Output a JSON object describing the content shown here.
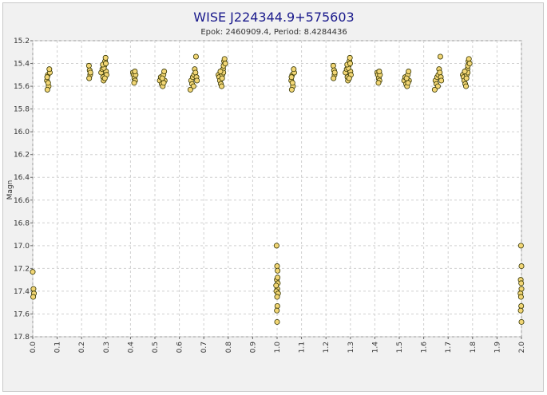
{
  "chart_data": {
    "type": "scatter",
    "title": "WISE J224344.9+575603",
    "subtitle": "Epok: 2460909.4, Period: 8.4284436",
    "xlabel": "",
    "ylabel": "Magn",
    "xlim": [
      0.0,
      2.0
    ],
    "ylim": [
      15.2,
      17.8
    ],
    "y_inverted": true,
    "grid": true,
    "x_ticks": [
      "0.0",
      "0.1",
      "0.2",
      "0.3",
      "0.4",
      "0.5",
      "0.6",
      "0.7",
      "0.8",
      "0.9",
      "1.0",
      "1.1",
      "1.2",
      "1.3",
      "1.4",
      "1.5",
      "1.6",
      "1.7",
      "1.8",
      "1.9",
      "2.0"
    ],
    "y_ticks": [
      "15.2",
      "15.4",
      "15.6",
      "15.8",
      "16.0",
      "16.2",
      "16.4",
      "16.6",
      "16.8",
      "17.0",
      "17.2",
      "17.4",
      "17.6",
      "17.8"
    ],
    "marker_fill": "#f2d675",
    "marker_edge": "#333300",
    "series": [
      {
        "points": [
          [
            0.0,
            17.23
          ],
          [
            0.003,
            17.38
          ],
          [
            0.005,
            17.42
          ],
          [
            0.002,
            17.45
          ],
          [
            0.058,
            15.55
          ],
          [
            0.062,
            15.5
          ],
          [
            0.065,
            15.6
          ],
          [
            0.06,
            15.63
          ],
          [
            0.07,
            15.48
          ],
          [
            0.068,
            15.45
          ],
          [
            0.063,
            15.57
          ],
          [
            0.059,
            15.52
          ],
          [
            0.23,
            15.42
          ],
          [
            0.233,
            15.46
          ],
          [
            0.235,
            15.5
          ],
          [
            0.231,
            15.53
          ],
          [
            0.236,
            15.48
          ],
          [
            0.28,
            15.48
          ],
          [
            0.285,
            15.45
          ],
          [
            0.288,
            15.52
          ],
          [
            0.29,
            15.55
          ],
          [
            0.293,
            15.42
          ],
          [
            0.296,
            15.38
          ],
          [
            0.298,
            15.35
          ],
          [
            0.3,
            15.47
          ],
          [
            0.302,
            15.5
          ],
          [
            0.295,
            15.53
          ],
          [
            0.291,
            15.44
          ],
          [
            0.287,
            15.41
          ],
          [
            0.299,
            15.4
          ],
          [
            0.41,
            15.48
          ],
          [
            0.413,
            15.5
          ],
          [
            0.416,
            15.53
          ],
          [
            0.419,
            15.55
          ],
          [
            0.421,
            15.5
          ],
          [
            0.418,
            15.47
          ],
          [
            0.415,
            15.57
          ],
          [
            0.52,
            15.55
          ],
          [
            0.524,
            15.52
          ],
          [
            0.528,
            15.58
          ],
          [
            0.532,
            15.6
          ],
          [
            0.535,
            15.5
          ],
          [
            0.538,
            15.47
          ],
          [
            0.54,
            15.55
          ],
          [
            0.536,
            15.57
          ],
          [
            0.53,
            15.53
          ],
          [
            0.648,
            15.55
          ],
          [
            0.652,
            15.58
          ],
          [
            0.655,
            15.52
          ],
          [
            0.658,
            15.6
          ],
          [
            0.66,
            15.5
          ],
          [
            0.663,
            15.45
          ],
          [
            0.666,
            15.48
          ],
          [
            0.67,
            15.52
          ],
          [
            0.672,
            15.55
          ],
          [
            0.668,
            15.34
          ],
          [
            0.645,
            15.63
          ],
          [
            0.76,
            15.5
          ],
          [
            0.763,
            15.52
          ],
          [
            0.766,
            15.55
          ],
          [
            0.77,
            15.58
          ],
          [
            0.773,
            15.6
          ],
          [
            0.776,
            15.5
          ],
          [
            0.779,
            15.45
          ],
          [
            0.781,
            15.42
          ],
          [
            0.783,
            15.38
          ],
          [
            0.785,
            15.36
          ],
          [
            0.788,
            15.4
          ],
          [
            0.78,
            15.48
          ],
          [
            0.775,
            15.53
          ],
          [
            0.768,
            15.47
          ],
          [
            0.998,
            17.0
          ],
          [
            1.0,
            17.18
          ],
          [
            1.002,
            17.22
          ],
          [
            0.999,
            17.3
          ],
          [
            1.003,
            17.33
          ],
          [
            1.001,
            17.38
          ],
          [
            0.997,
            17.4
          ],
          [
            1.004,
            17.42
          ],
          [
            1.0,
            17.45
          ],
          [
            0.996,
            17.35
          ],
          [
            1.002,
            17.28
          ],
          [
            1.001,
            17.53
          ],
          [
            0.999,
            17.57
          ],
          [
            1.0,
            17.67
          ],
          [
            1.058,
            15.55
          ],
          [
            1.062,
            15.5
          ],
          [
            1.065,
            15.6
          ],
          [
            1.06,
            15.63
          ],
          [
            1.07,
            15.48
          ],
          [
            1.068,
            15.45
          ],
          [
            1.063,
            15.57
          ],
          [
            1.059,
            15.52
          ],
          [
            1.23,
            15.42
          ],
          [
            1.233,
            15.46
          ],
          [
            1.235,
            15.5
          ],
          [
            1.231,
            15.53
          ],
          [
            1.236,
            15.48
          ],
          [
            1.28,
            15.48
          ],
          [
            1.285,
            15.45
          ],
          [
            1.288,
            15.52
          ],
          [
            1.29,
            15.55
          ],
          [
            1.293,
            15.42
          ],
          [
            1.296,
            15.38
          ],
          [
            1.298,
            15.35
          ],
          [
            1.3,
            15.47
          ],
          [
            1.302,
            15.5
          ],
          [
            1.295,
            15.53
          ],
          [
            1.291,
            15.44
          ],
          [
            1.287,
            15.41
          ],
          [
            1.299,
            15.4
          ],
          [
            1.41,
            15.48
          ],
          [
            1.413,
            15.5
          ],
          [
            1.416,
            15.53
          ],
          [
            1.419,
            15.55
          ],
          [
            1.421,
            15.5
          ],
          [
            1.418,
            15.47
          ],
          [
            1.415,
            15.57
          ],
          [
            1.52,
            15.55
          ],
          [
            1.524,
            15.52
          ],
          [
            1.528,
            15.58
          ],
          [
            1.532,
            15.6
          ],
          [
            1.535,
            15.5
          ],
          [
            1.538,
            15.47
          ],
          [
            1.54,
            15.55
          ],
          [
            1.536,
            15.57
          ],
          [
            1.53,
            15.53
          ],
          [
            1.648,
            15.55
          ],
          [
            1.652,
            15.58
          ],
          [
            1.655,
            15.52
          ],
          [
            1.658,
            15.6
          ],
          [
            1.66,
            15.5
          ],
          [
            1.663,
            15.45
          ],
          [
            1.666,
            15.48
          ],
          [
            1.67,
            15.52
          ],
          [
            1.672,
            15.55
          ],
          [
            1.668,
            15.34
          ],
          [
            1.645,
            15.63
          ],
          [
            1.76,
            15.5
          ],
          [
            1.763,
            15.52
          ],
          [
            1.766,
            15.55
          ],
          [
            1.77,
            15.58
          ],
          [
            1.773,
            15.6
          ],
          [
            1.776,
            15.5
          ],
          [
            1.779,
            15.45
          ],
          [
            1.781,
            15.42
          ],
          [
            1.783,
            15.38
          ],
          [
            1.785,
            15.36
          ],
          [
            1.788,
            15.4
          ],
          [
            1.78,
            15.48
          ],
          [
            1.775,
            15.53
          ],
          [
            1.768,
            15.47
          ],
          [
            1.998,
            17.0
          ],
          [
            2.0,
            17.18
          ],
          [
            1.997,
            17.3
          ],
          [
            1.999,
            17.33
          ],
          [
            2.0,
            17.38
          ],
          [
            1.996,
            17.42
          ],
          [
            1.998,
            17.45
          ],
          [
            1.999,
            17.53
          ],
          [
            1.997,
            17.57
          ],
          [
            2.0,
            17.67
          ]
        ]
      }
    ]
  }
}
